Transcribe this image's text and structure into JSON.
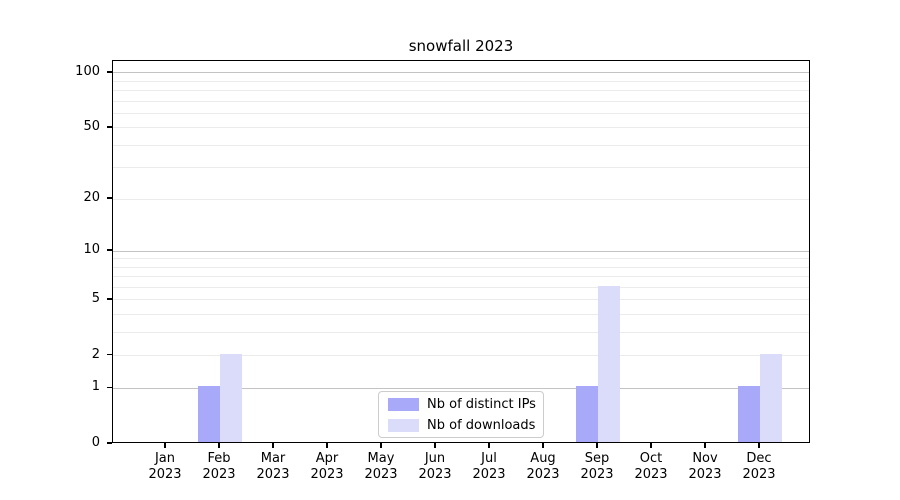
{
  "chart_data": {
    "type": "bar",
    "title": "snowfall 2023",
    "categories": [
      "Jan",
      "Feb",
      "Mar",
      "Apr",
      "May",
      "Jun",
      "Jul",
      "Aug",
      "Sep",
      "Oct",
      "Nov",
      "Dec"
    ],
    "category_year": "2023",
    "series": [
      {
        "name": "Nb of distinct IPs",
        "color": "#a9a9fa",
        "values": [
          0,
          1,
          0,
          0,
          0,
          0,
          0,
          0,
          1,
          0,
          0,
          1
        ]
      },
      {
        "name": "Nb of downloads",
        "color": "#dbdbfa",
        "values": [
          0,
          2,
          0,
          0,
          0,
          0,
          0,
          0,
          6,
          0,
          0,
          2
        ]
      }
    ],
    "yscale": "log1p",
    "ylim": [
      0,
      116
    ],
    "y_ticks": [
      0,
      1,
      2,
      5,
      10,
      20,
      50,
      100
    ],
    "y_major_gridlines": [
      1,
      10,
      100
    ],
    "y_minor_gridlines": [
      2,
      3,
      4,
      5,
      6,
      7,
      8,
      9,
      20,
      30,
      40,
      50,
      60,
      70,
      80,
      90
    ],
    "xlabel": "",
    "ylabel": "",
    "grid": true,
    "legend_position": "lower center"
  },
  "colors": {
    "background": "#ffffff",
    "spine": "#000000",
    "major_grid": "#c3c3c3",
    "minor_grid": "#ebebeb",
    "text": "#000000",
    "legend_border": "#cccccc"
  }
}
